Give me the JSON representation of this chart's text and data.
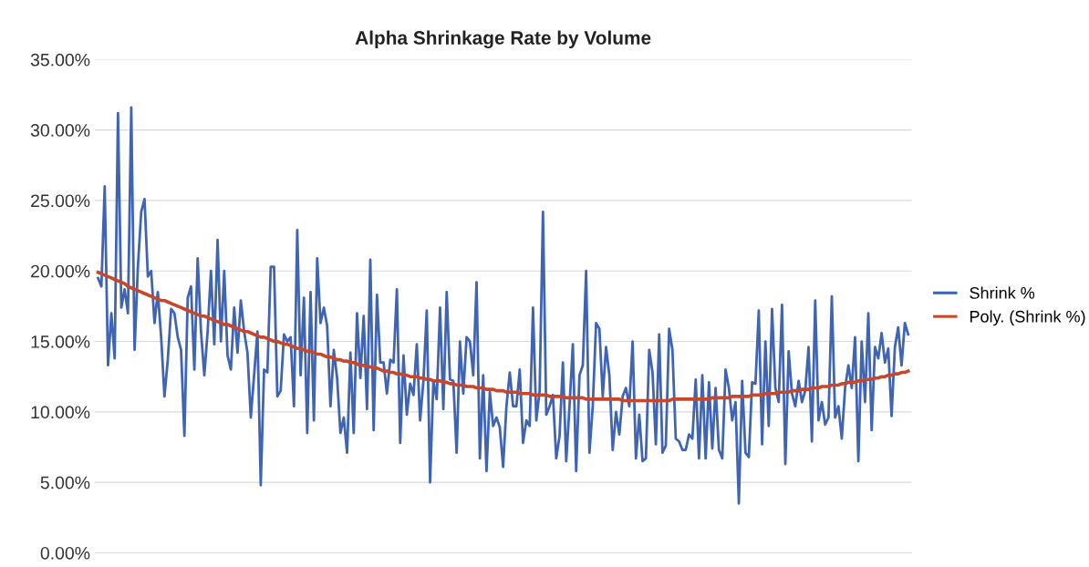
{
  "chart_data": {
    "type": "line",
    "title": "Alpha Shrinkage Rate by Volume",
    "categories": [
      null,
      null,
      null,
      null,
      null,
      null,
      null,
      null,
      null,
      null,
      null,
      null,
      null,
      null,
      null,
      null,
      null,
      null,
      null,
      null,
      null,
      null,
      null,
      null,
      null,
      null,
      null,
      null,
      null,
      null,
      null,
      null,
      null,
      null,
      null,
      null,
      null,
      null,
      null,
      null,
      null,
      null,
      null,
      null,
      null,
      null,
      null,
      null,
      null,
      null,
      null,
      null,
      null,
      null,
      null,
      null,
      null,
      null,
      null,
      null,
      null,
      null,
      null,
      null,
      null,
      null,
      null,
      null,
      null,
      null,
      null,
      null,
      null,
      null,
      null,
      null,
      null,
      null,
      null,
      null,
      null,
      null,
      null,
      null,
      null,
      null,
      null,
      null,
      null,
      null,
      null,
      null,
      null,
      null,
      null,
      null,
      null,
      null,
      null,
      null,
      null,
      null,
      null,
      null,
      null,
      null,
      null,
      null,
      null,
      null,
      null,
      null,
      null,
      null,
      null,
      null,
      null,
      null,
      null,
      null,
      null,
      null,
      null,
      null,
      null,
      null,
      null,
      null,
      null,
      null,
      null,
      null,
      null,
      null,
      null,
      null,
      null,
      null,
      null,
      null,
      null,
      null,
      null,
      null,
      null,
      null,
      null,
      null,
      null,
      null,
      null,
      null,
      null,
      null,
      null,
      null,
      null,
      null,
      null,
      null,
      null,
      null,
      null,
      null,
      null,
      null,
      null,
      null,
      null,
      null,
      null,
      null,
      null,
      null,
      null,
      null,
      null,
      null,
      null,
      null,
      null,
      null,
      null,
      null,
      null,
      null,
      null,
      null,
      null,
      null,
      null,
      null,
      null,
      null,
      null,
      null,
      null,
      null,
      null,
      null,
      null,
      null,
      null,
      null,
      null,
      null,
      null,
      null,
      null,
      null,
      null,
      null,
      null,
      null,
      null,
      null,
      null,
      null,
      null,
      null,
      null,
      null,
      null,
      null,
      null,
      null,
      null,
      null,
      null,
      null,
      null,
      null,
      null,
      null,
      null,
      null,
      null,
      null,
      null,
      null,
      null,
      null,
      null,
      null,
      null
    ],
    "series": [
      {
        "name": "Shrink %",
        "color": "#4064b4",
        "values": [
          19.5,
          18.9,
          26.0,
          13.3,
          17.0,
          13.8,
          31.2,
          17.4,
          18.7,
          17.0,
          31.6,
          14.4,
          20.3,
          24.2,
          25.1,
          19.6,
          20.0,
          16.3,
          18.5,
          15.3,
          11.1,
          13.7,
          17.3,
          17.0,
          15.3,
          14.4,
          8.3,
          18.1,
          18.9,
          13.0,
          20.9,
          15.7,
          12.6,
          15.7,
          20.0,
          14.8,
          22.2,
          15.0,
          20.0,
          14.0,
          13.0,
          17.4,
          14.2,
          17.9,
          15.7,
          14.2,
          9.6,
          12.6,
          15.7,
          4.8,
          13.0,
          12.8,
          20.3,
          20.3,
          11.1,
          11.5,
          15.5,
          15.0,
          15.3,
          10.4,
          22.9,
          12.6,
          18.1,
          8.5,
          18.5,
          9.4,
          20.9,
          16.3,
          17.4,
          16.1,
          10.4,
          14.4,
          12.4,
          8.5,
          9.6,
          7.1,
          14.2,
          8.5,
          17.0,
          12.4,
          16.8,
          10.2,
          20.8,
          8.7,
          18.3,
          13.5,
          13.5,
          11.3,
          13.7,
          13.5,
          18.7,
          7.8,
          14.0,
          9.8,
          12.0,
          11.2,
          14.8,
          9.4,
          12.2,
          17.2,
          5.0,
          12.2,
          10.9,
          17.4,
          10.2,
          18.5,
          12.3,
          12.2,
          7.1,
          15.0,
          11.3,
          15.3,
          15.0,
          12.6,
          19.2,
          6.7,
          12.6,
          5.8,
          11.4,
          9.0,
          9.6,
          8.9,
          6.1,
          10.4,
          12.8,
          10.4,
          10.4,
          13.0,
          7.8,
          9.4,
          9.0,
          17.4,
          9.4,
          11.5,
          24.2,
          9.8,
          10.4,
          11.2,
          6.7,
          8.3,
          13.5,
          6.5,
          10.4,
          14.8,
          5.8,
          12.6,
          13.3,
          20.0,
          7.1,
          10.4,
          16.3,
          15.9,
          11.1,
          14.6,
          12.6,
          7.3,
          10.0,
          8.4,
          11.1,
          11.7,
          10.4,
          15.0,
          6.7,
          9.8,
          6.5,
          6.7,
          14.4,
          12.8,
          7.7,
          15.5,
          7.1,
          7.6,
          15.9,
          14.4,
          8.1,
          7.9,
          7.3,
          7.3,
          8.4,
          8.1,
          12.3,
          6.7,
          12.6,
          6.7,
          12.1,
          7.4,
          11.7,
          7.3,
          6.7,
          13.0,
          11.7,
          9.4,
          10.7,
          3.5,
          12.2,
          7.1,
          6.8,
          12.1,
          12.0,
          17.2,
          7.7,
          15.0,
          9.0,
          17.3,
          11.7,
          10.7,
          17.6,
          6.3,
          14.3,
          11.3,
          10.4,
          12.2,
          10.7,
          11.5,
          14.6,
          7.9,
          17.9,
          9.4,
          10.7,
          9.1,
          9.6,
          18.2,
          9.6,
          10.4,
          8.1,
          11.7,
          13.3,
          11.7,
          15.3,
          6.5,
          15.0,
          10.7,
          17.0,
          8.7,
          14.6,
          13.8,
          15.6,
          13.5,
          14.5,
          9.7,
          14.6,
          16.0,
          13.3,
          16.3,
          15.5
        ]
      },
      {
        "name": "Poly. (Shrink %)",
        "color": "#c8462a",
        "values": [
          19.9,
          19.8,
          19.7,
          19.6,
          19.5,
          19.4,
          19.3,
          19.2,
          19.1,
          18.9,
          18.8,
          18.7,
          18.6,
          18.5,
          18.4,
          18.3,
          18.2,
          18.1,
          18.0,
          17.9,
          17.9,
          17.8,
          17.7,
          17.6,
          17.5,
          17.4,
          17.3,
          17.2,
          17.1,
          17.0,
          16.9,
          16.8,
          16.8,
          16.7,
          16.6,
          16.5,
          16.4,
          16.3,
          16.2,
          16.2,
          16.1,
          16.0,
          15.9,
          15.8,
          15.7,
          15.7,
          15.6,
          15.5,
          15.4,
          15.3,
          15.3,
          15.2,
          15.1,
          15.0,
          15.0,
          14.9,
          14.8,
          14.8,
          14.7,
          14.6,
          14.5,
          14.5,
          14.4,
          14.3,
          14.3,
          14.2,
          14.1,
          14.1,
          14.0,
          13.9,
          13.9,
          13.8,
          13.7,
          13.7,
          13.6,
          13.6,
          13.5,
          13.5,
          13.4,
          13.3,
          13.3,
          13.2,
          13.2,
          13.1,
          13.1,
          13.0,
          12.9,
          12.9,
          12.8,
          12.8,
          12.7,
          12.7,
          12.6,
          12.6,
          12.5,
          12.5,
          12.5,
          12.4,
          12.4,
          12.3,
          12.3,
          12.2,
          12.2,
          12.2,
          12.1,
          12.1,
          12.0,
          12.0,
          11.9,
          11.9,
          11.9,
          11.8,
          11.8,
          11.8,
          11.7,
          11.7,
          11.7,
          11.6,
          11.6,
          11.6,
          11.5,
          11.5,
          11.5,
          11.4,
          11.4,
          11.4,
          11.4,
          11.3,
          11.3,
          11.3,
          11.3,
          11.2,
          11.2,
          11.2,
          11.2,
          11.2,
          11.1,
          11.1,
          11.1,
          11.1,
          11.1,
          11.0,
          11.0,
          11.0,
          11.0,
          11.0,
          11.0,
          10.9,
          10.9,
          10.9,
          10.9,
          10.9,
          10.9,
          10.9,
          10.9,
          10.9,
          10.9,
          10.9,
          10.8,
          10.8,
          10.8,
          10.8,
          10.8,
          10.8,
          10.8,
          10.8,
          10.8,
          10.8,
          10.8,
          10.8,
          10.8,
          10.8,
          10.8,
          10.9,
          10.9,
          10.9,
          10.9,
          10.9,
          10.9,
          10.9,
          10.9,
          10.9,
          10.9,
          10.9,
          10.9,
          11.0,
          11.0,
          11.0,
          11.0,
          11.0,
          11.0,
          11.1,
          11.1,
          11.1,
          11.1,
          11.1,
          11.1,
          11.2,
          11.2,
          11.2,
          11.2,
          11.3,
          11.3,
          11.3,
          11.3,
          11.4,
          11.4,
          11.4,
          11.4,
          11.5,
          11.5,
          11.5,
          11.6,
          11.6,
          11.6,
          11.7,
          11.7,
          11.7,
          11.8,
          11.8,
          11.8,
          11.9,
          11.9,
          11.9,
          12.0,
          12.0,
          12.1,
          12.1,
          12.1,
          12.2,
          12.2,
          12.3,
          12.3,
          12.3,
          12.4,
          12.4,
          12.5,
          12.5,
          12.6,
          12.6,
          12.7,
          12.7,
          12.8,
          12.8,
          12.9
        ]
      }
    ],
    "ylim": [
      0,
      35
    ],
    "yticks": [
      {
        "value": 0,
        "label": "0.00%"
      },
      {
        "value": 5,
        "label": "5.00%"
      },
      {
        "value": 10,
        "label": "10.00%"
      },
      {
        "value": 15,
        "label": "15.00%"
      },
      {
        "value": 20,
        "label": "20.00%"
      },
      {
        "value": 25,
        "label": "25.00%"
      },
      {
        "value": 30,
        "label": "30.00%"
      },
      {
        "value": 35,
        "label": "35.00%"
      }
    ],
    "grid": "y",
    "legend": "right",
    "marker": "none",
    "line_style": "solid"
  }
}
